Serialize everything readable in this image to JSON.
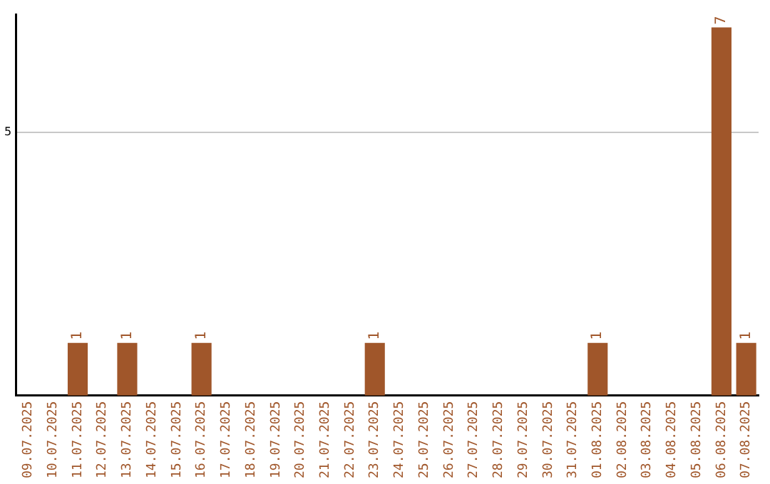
{
  "chart_data": {
    "type": "bar",
    "categories": [
      "09.07.2025",
      "10.07.2025",
      "11.07.2025",
      "12.07.2025",
      "13.07.2025",
      "14.07.2025",
      "15.07.2025",
      "16.07.2025",
      "17.07.2025",
      "18.07.2025",
      "19.07.2025",
      "20.07.2025",
      "21.07.2025",
      "22.07.2025",
      "23.07.2025",
      "24.07.2025",
      "25.07.2025",
      "26.07.2025",
      "27.07.2025",
      "28.07.2025",
      "29.07.2025",
      "30.07.2025",
      "31.07.2025",
      "01.08.2025",
      "02.08.2025",
      "03.08.2025",
      "04.08.2025",
      "05.08.2025",
      "06.08.2025",
      "07.08.2025"
    ],
    "values": [
      0,
      0,
      1,
      0,
      1,
      0,
      0,
      1,
      0,
      0,
      0,
      0,
      0,
      0,
      1,
      0,
      0,
      0,
      0,
      0,
      0,
      0,
      0,
      1,
      0,
      0,
      0,
      0,
      7,
      1
    ],
    "color": "#a0562a",
    "value_labels": [
      null,
      null,
      "1",
      null,
      "1",
      null,
      null,
      "1",
      null,
      null,
      null,
      null,
      null,
      null,
      "1",
      null,
      null,
      null,
      null,
      null,
      null,
      null,
      null,
      "1",
      null,
      null,
      null,
      null,
      "7",
      "1"
    ],
    "ylim": [
      0,
      7.25
    ],
    "yticks": [
      5
    ],
    "grid": "y",
    "legend": false
  }
}
